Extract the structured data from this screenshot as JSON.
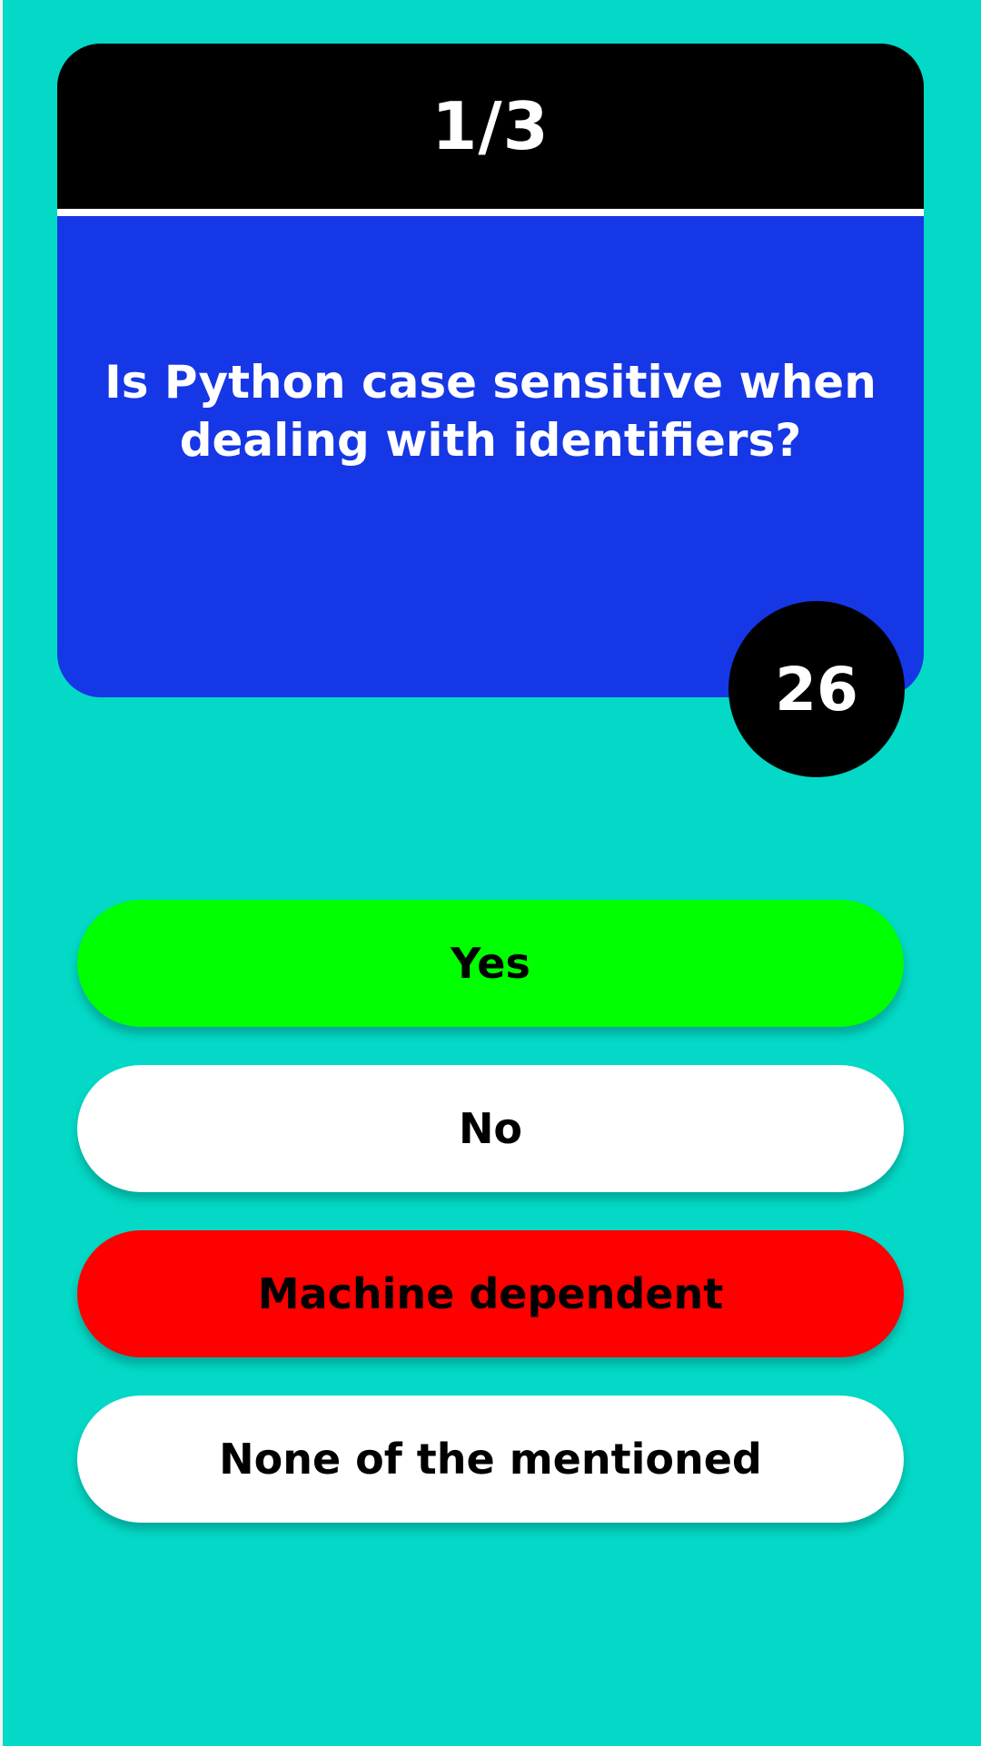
{
  "quiz": {
    "progress": "1/3",
    "question": "Is Python case sensitive when dealing with identifiers?",
    "timer": "26",
    "answers": [
      {
        "label": "Yes",
        "state": "correct",
        "color": "#00ff00"
      },
      {
        "label": "No",
        "state": "neutral",
        "color": "#ffffff"
      },
      {
        "label": "Machine dependent",
        "state": "wrong",
        "color": "#ff0000"
      },
      {
        "label": "None of the mentioned",
        "state": "neutral",
        "color": "#ffffff"
      }
    ]
  },
  "colors": {
    "background": "#03d9c6",
    "card": "#1637e6",
    "header": "#000000",
    "timer": "#000000"
  }
}
